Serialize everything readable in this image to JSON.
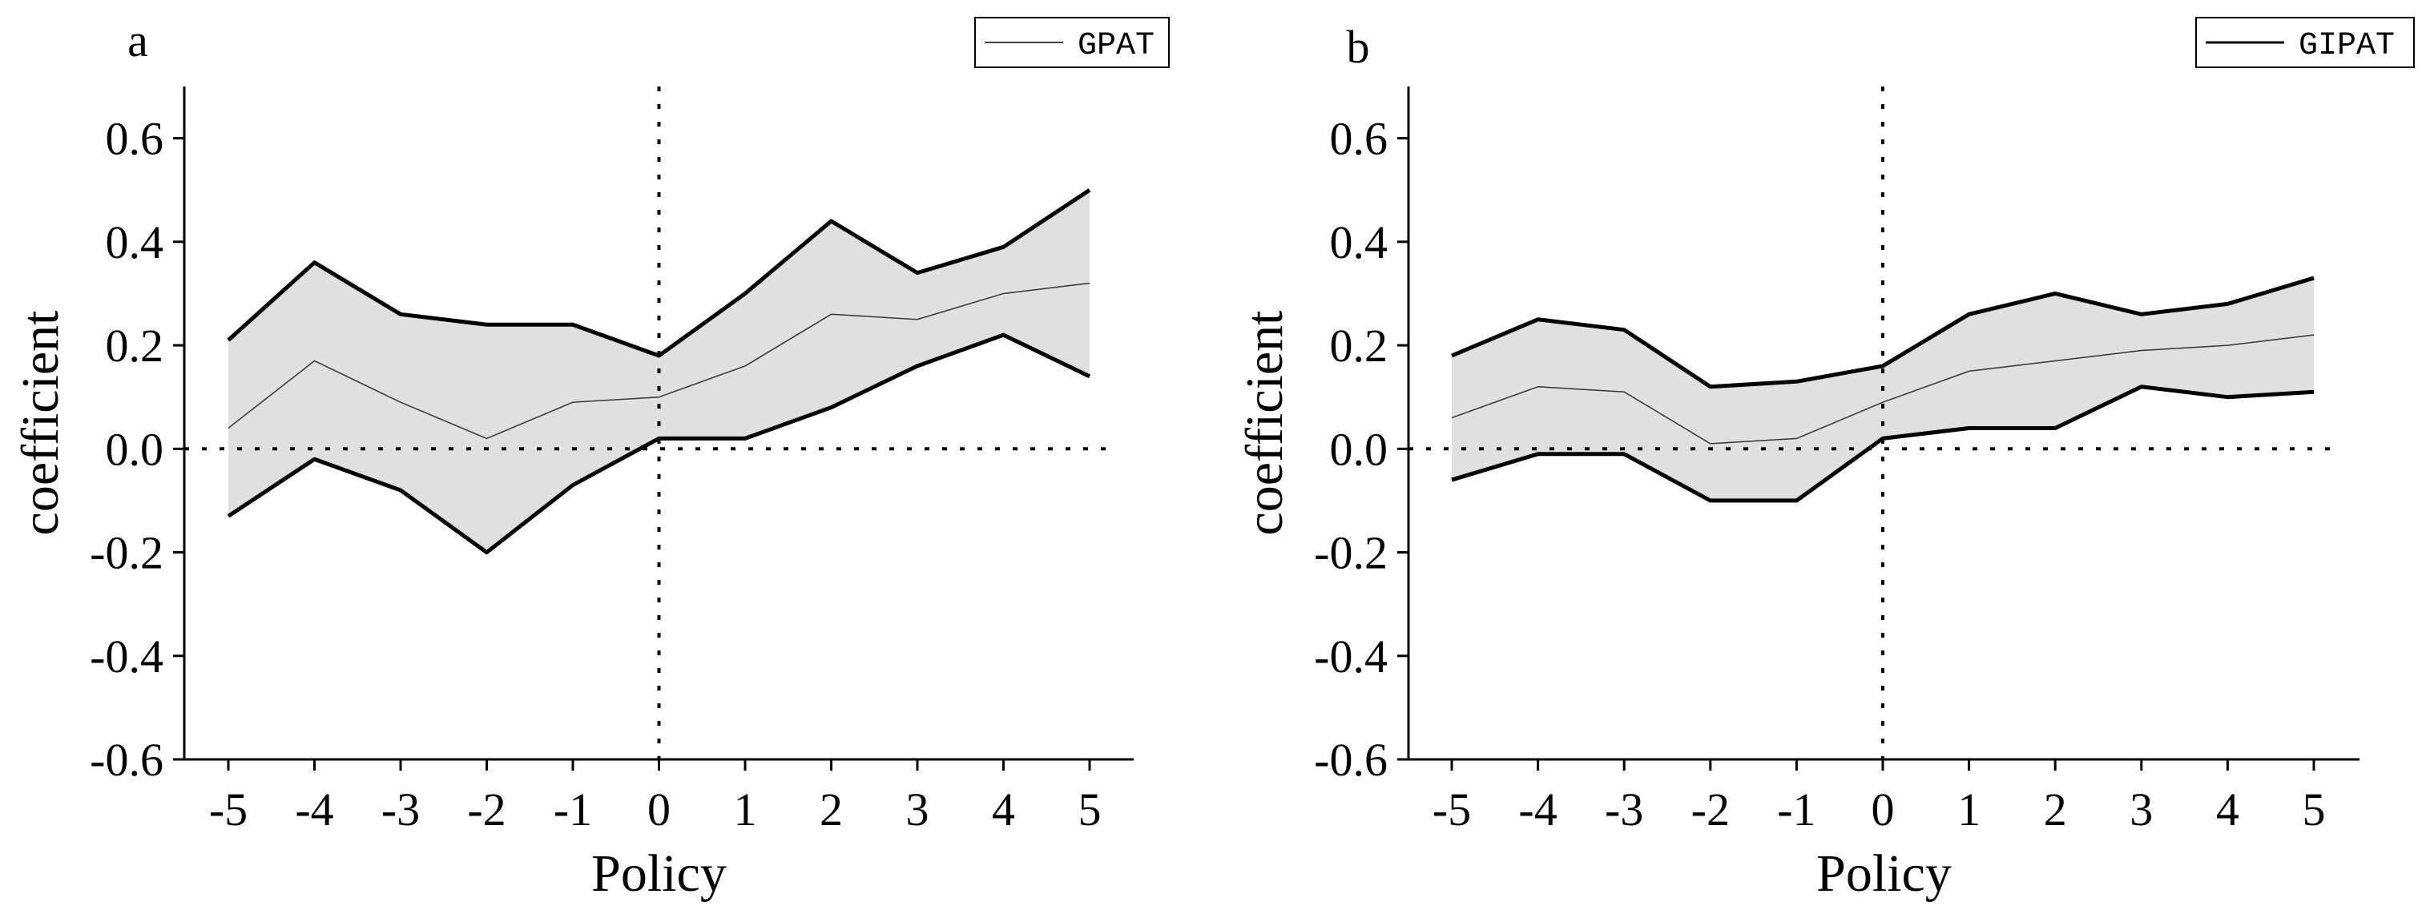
{
  "chart_data": [
    {
      "type": "line",
      "panel_label": "a",
      "title": "",
      "xlabel": "Policy",
      "ylabel": "coefficient",
      "x": [
        -5,
        -4,
        -3,
        -2,
        -1,
        0,
        1,
        2,
        3,
        4,
        5
      ],
      "x_tick_labels": [
        "-5",
        "-4",
        "-3",
        "-2",
        "-1",
        "0",
        "1",
        "2",
        "3",
        "4",
        "5"
      ],
      "ylim": [
        -0.6,
        0.7
      ],
      "y_ticks": [
        -0.6,
        -0.4,
        -0.2,
        0.0,
        0.2,
        0.4,
        0.6
      ],
      "y_tick_labels": [
        "-0.6",
        "-0.4",
        "-0.2",
        "0.0",
        "0.2",
        "0.4",
        "0.6"
      ],
      "series": [
        {
          "name": "GPAT",
          "role": "estimate",
          "values": [
            0.04,
            0.17,
            0.09,
            0.02,
            0.09,
            0.1,
            0.16,
            0.26,
            0.25,
            0.3,
            0.32
          ]
        },
        {
          "name": "upper bound",
          "role": "ci_upper",
          "values": [
            0.21,
            0.36,
            0.26,
            0.24,
            0.24,
            0.18,
            0.3,
            0.44,
            0.34,
            0.39,
            0.5
          ]
        },
        {
          "name": "lower bound",
          "role": "ci_lower",
          "values": [
            -0.13,
            -0.02,
            -0.08,
            -0.2,
            -0.07,
            0.02,
            0.02,
            0.08,
            0.16,
            0.22,
            0.14
          ]
        }
      ],
      "reference_lines": {
        "horizontal_y": 0.0,
        "vertical_x": 0
      },
      "legend": {
        "entries": [
          "GPAT"
        ],
        "position": "top-right"
      },
      "band_color": "#e0e0e0",
      "line_color": "#000000"
    },
    {
      "type": "line",
      "panel_label": "b",
      "title": "",
      "xlabel": "Policy",
      "ylabel": "coefficient",
      "x": [
        -5,
        -4,
        -3,
        -2,
        -1,
        0,
        1,
        2,
        3,
        4,
        5
      ],
      "x_tick_labels": [
        "-5",
        "-4",
        "-3",
        "-2",
        "-1",
        "0",
        "1",
        "2",
        "3",
        "4",
        "5"
      ],
      "ylim": [
        -0.6,
        0.7
      ],
      "y_ticks": [
        -0.6,
        -0.4,
        -0.2,
        0.0,
        0.2,
        0.4,
        0.6
      ],
      "y_tick_labels": [
        "-0.6",
        "-0.4",
        "-0.2",
        "0.0",
        "0.2",
        "0.4",
        "0.6"
      ],
      "series": [
        {
          "name": "GIPAT",
          "role": "estimate",
          "values": [
            0.06,
            0.12,
            0.11,
            0.01,
            0.02,
            0.09,
            0.15,
            0.17,
            0.19,
            0.2,
            0.22
          ]
        },
        {
          "name": "upper bound",
          "role": "ci_upper",
          "values": [
            0.18,
            0.25,
            0.23,
            0.12,
            0.13,
            0.16,
            0.26,
            0.3,
            0.26,
            0.28,
            0.33
          ]
        },
        {
          "name": "lower bound",
          "role": "ci_lower",
          "values": [
            -0.06,
            -0.01,
            -0.01,
            -0.1,
            -0.1,
            0.02,
            0.04,
            0.04,
            0.12,
            0.1,
            0.11
          ]
        }
      ],
      "reference_lines": {
        "horizontal_y": 0.0,
        "vertical_x": 0
      },
      "legend": {
        "entries": [
          "GIPAT"
        ],
        "position": "top-right"
      },
      "band_color": "#e0e0e0",
      "line_color": "#000000"
    }
  ]
}
